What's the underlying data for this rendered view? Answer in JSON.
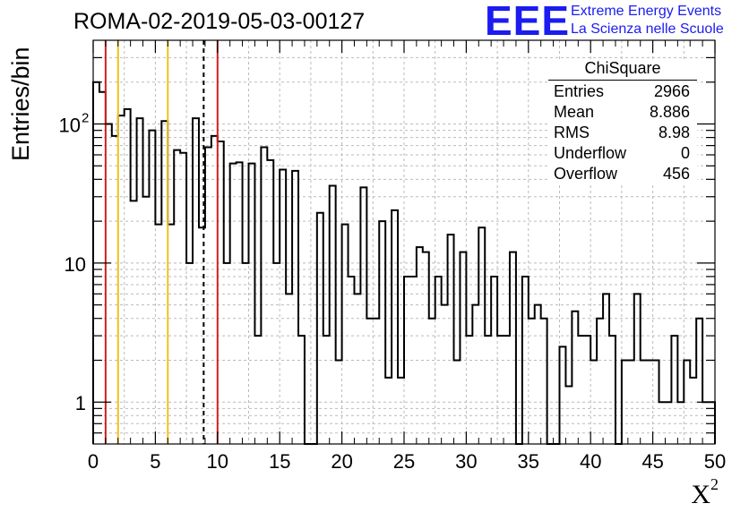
{
  "title": "ROMA-02-2019-05-03-00127",
  "logo": {
    "mark": "EEE",
    "line1": "Extreme Energy Events",
    "line2": "La Scienza nelle Scuole",
    "color": "#1c1cf0"
  },
  "stats": {
    "title": "ChiSquare",
    "rows": [
      {
        "label": "Entries",
        "value": "2966"
      },
      {
        "label": "Mean",
        "value": "8.886"
      },
      {
        "label": "RMS",
        "value": "8.98"
      },
      {
        "label": "Underflow",
        "value": "0"
      },
      {
        "label": "Overflow",
        "value": "456"
      }
    ]
  },
  "chart_data": {
    "type": "bar",
    "histogram": true,
    "title": "ROMA-02-2019-05-03-00127",
    "xlabel": "X",
    "xlabel_superscript": "2",
    "ylabel": "Entries/bin",
    "xlim": [
      0,
      50
    ],
    "ylim": [
      0.5,
      400
    ],
    "yscale": "log",
    "grid": true,
    "bin_width": 0.5,
    "x_ticks": [
      "0",
      "5",
      "10",
      "15",
      "20",
      "25",
      "30",
      "35",
      "40",
      "45",
      "50"
    ],
    "y_ticks": [
      {
        "value": 1,
        "label": "1"
      },
      {
        "value": 10,
        "label": "10"
      },
      {
        "value": 100,
        "label": "10",
        "exp": "2"
      }
    ],
    "values": [
      200,
      170,
      100,
      82,
      115,
      128,
      28,
      110,
      30,
      90,
      19,
      105,
      19,
      65,
      62,
      10,
      110,
      18,
      68,
      82,
      75,
      10,
      52,
      53,
      10,
      52,
      3,
      68,
      55,
      10,
      47,
      6,
      46,
      3,
      0,
      0,
      23,
      3,
      36,
      2,
      19,
      8,
      6,
      35,
      4,
      4,
      20,
      1.5,
      24,
      1.5,
      8,
      8,
      13,
      12,
      4,
      8,
      5,
      16,
      2,
      12,
      3,
      5,
      18,
      3,
      8,
      3,
      3,
      12,
      0,
      8,
      4,
      5,
      4,
      0,
      0,
      2.5,
      1.3,
      4.5,
      3,
      3,
      2,
      4,
      6,
      3,
      0,
      2,
      2,
      6,
      2,
      2,
      2,
      1,
      1,
      3,
      1,
      2,
      1.5,
      4,
      1,
      1
    ],
    "vlines": [
      {
        "x": 1,
        "color": "#d21e1e",
        "style": "solid"
      },
      {
        "x": 10,
        "color": "#d21e1e",
        "style": "solid"
      },
      {
        "x": 2,
        "color": "#f0c020",
        "style": "solid"
      },
      {
        "x": 6,
        "color": "#f0c020",
        "style": "solid"
      },
      {
        "x": 8.886,
        "color": "#000000",
        "style": "dashed"
      }
    ]
  }
}
